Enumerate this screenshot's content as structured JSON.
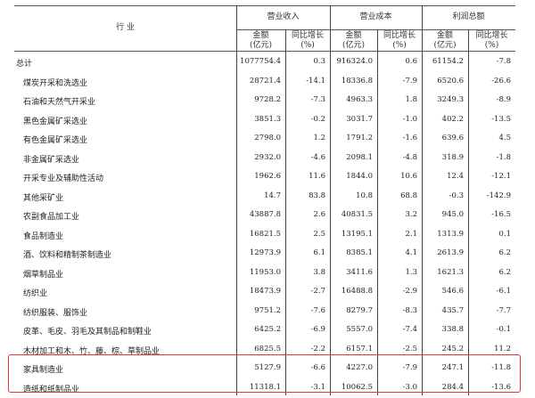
{
  "header": {
    "industry": "行 业",
    "groups": [
      "营业收入",
      "营业成本",
      "利润总额"
    ],
    "amount": "金额",
    "amount_unit": "(亿元)",
    "growth": "同比增长",
    "growth_unit": "(%)"
  },
  "rows": [
    {
      "name": "总计",
      "v": [
        "1077754.4",
        "0.3",
        "916324.0",
        "0.6",
        "61154.2",
        "-7.8"
      ]
    },
    {
      "name": "煤炭开采和洗选业",
      "v": [
        "28721.4",
        "-14.1",
        "18336.8",
        "-7.9",
        "6520.6",
        "-26.6"
      ]
    },
    {
      "name": "石油和天然气开采业",
      "v": [
        "9728.2",
        "-7.3",
        "4963.3",
        "1.8",
        "3249.3",
        "-8.9"
      ]
    },
    {
      "name": "黑色金属矿采选业",
      "v": [
        "3851.3",
        "-0.2",
        "3031.7",
        "-1.0",
        "402.2",
        "-13.5"
      ]
    },
    {
      "name": "有色金属矿采选业",
      "v": [
        "2798.0",
        "1.2",
        "1791.2",
        "-1.6",
        "639.6",
        "4.5"
      ]
    },
    {
      "name": "非金属矿采选业",
      "v": [
        "2932.0",
        "-4.6",
        "2098.1",
        "-4.8",
        "318.9",
        "-1.8"
      ]
    },
    {
      "name": "开采专业及辅助性活动",
      "v": [
        "1962.6",
        "11.6",
        "1844.0",
        "10.6",
        "12.4",
        "-12.1"
      ]
    },
    {
      "name": "其他采矿业",
      "v": [
        "14.7",
        "83.8",
        "10.8",
        "68.8",
        "-0.3",
        "-142.9"
      ]
    },
    {
      "name": "农副食品加工业",
      "v": [
        "43887.8",
        "2.6",
        "40831.5",
        "3.2",
        "945.0",
        "-16.5"
      ]
    },
    {
      "name": "食品制造业",
      "v": [
        "16821.5",
        "2.5",
        "13195.1",
        "2.1",
        "1313.9",
        "0.1"
      ]
    },
    {
      "name": "酒、饮料和精制茶制造业",
      "v": [
        "12973.9",
        "6.1",
        "8385.1",
        "4.1",
        "2613.9",
        "6.2"
      ]
    },
    {
      "name": "烟草制品业",
      "v": [
        "11953.0",
        "3.8",
        "3411.6",
        "1.3",
        "1621.3",
        "6.2"
      ]
    },
    {
      "name": "纺织业",
      "v": [
        "18473.9",
        "-2.7",
        "16488.8",
        "-2.9",
        "546.6",
        "-6.1"
      ]
    },
    {
      "name": "纺织服装、服饰业",
      "v": [
        "9751.2",
        "-7.6",
        "8279.7",
        "-8.3",
        "435.7",
        "-7.7"
      ]
    },
    {
      "name": "皮革、毛皮、羽毛及其制品和制鞋业",
      "v": [
        "6425.2",
        "-6.9",
        "5557.0",
        "-7.4",
        "338.8",
        "-0.1"
      ]
    },
    {
      "name": "木材加工和木、竹、藤、棕、草制品业",
      "v": [
        "6825.5",
        "-2.2",
        "6157.1",
        "-2.5",
        "245.2",
        "11.2"
      ]
    },
    {
      "name": "家具制造业",
      "v": [
        "5127.9",
        "-6.6",
        "4227.0",
        "-7.9",
        "247.1",
        "-11.8"
      ]
    },
    {
      "name": "造纸和纸制品业",
      "v": [
        "11318.1",
        "-3.1",
        "10062.5",
        "-3.0",
        "284.4",
        "-13.6"
      ]
    }
  ],
  "highlight_color": "#e33333"
}
